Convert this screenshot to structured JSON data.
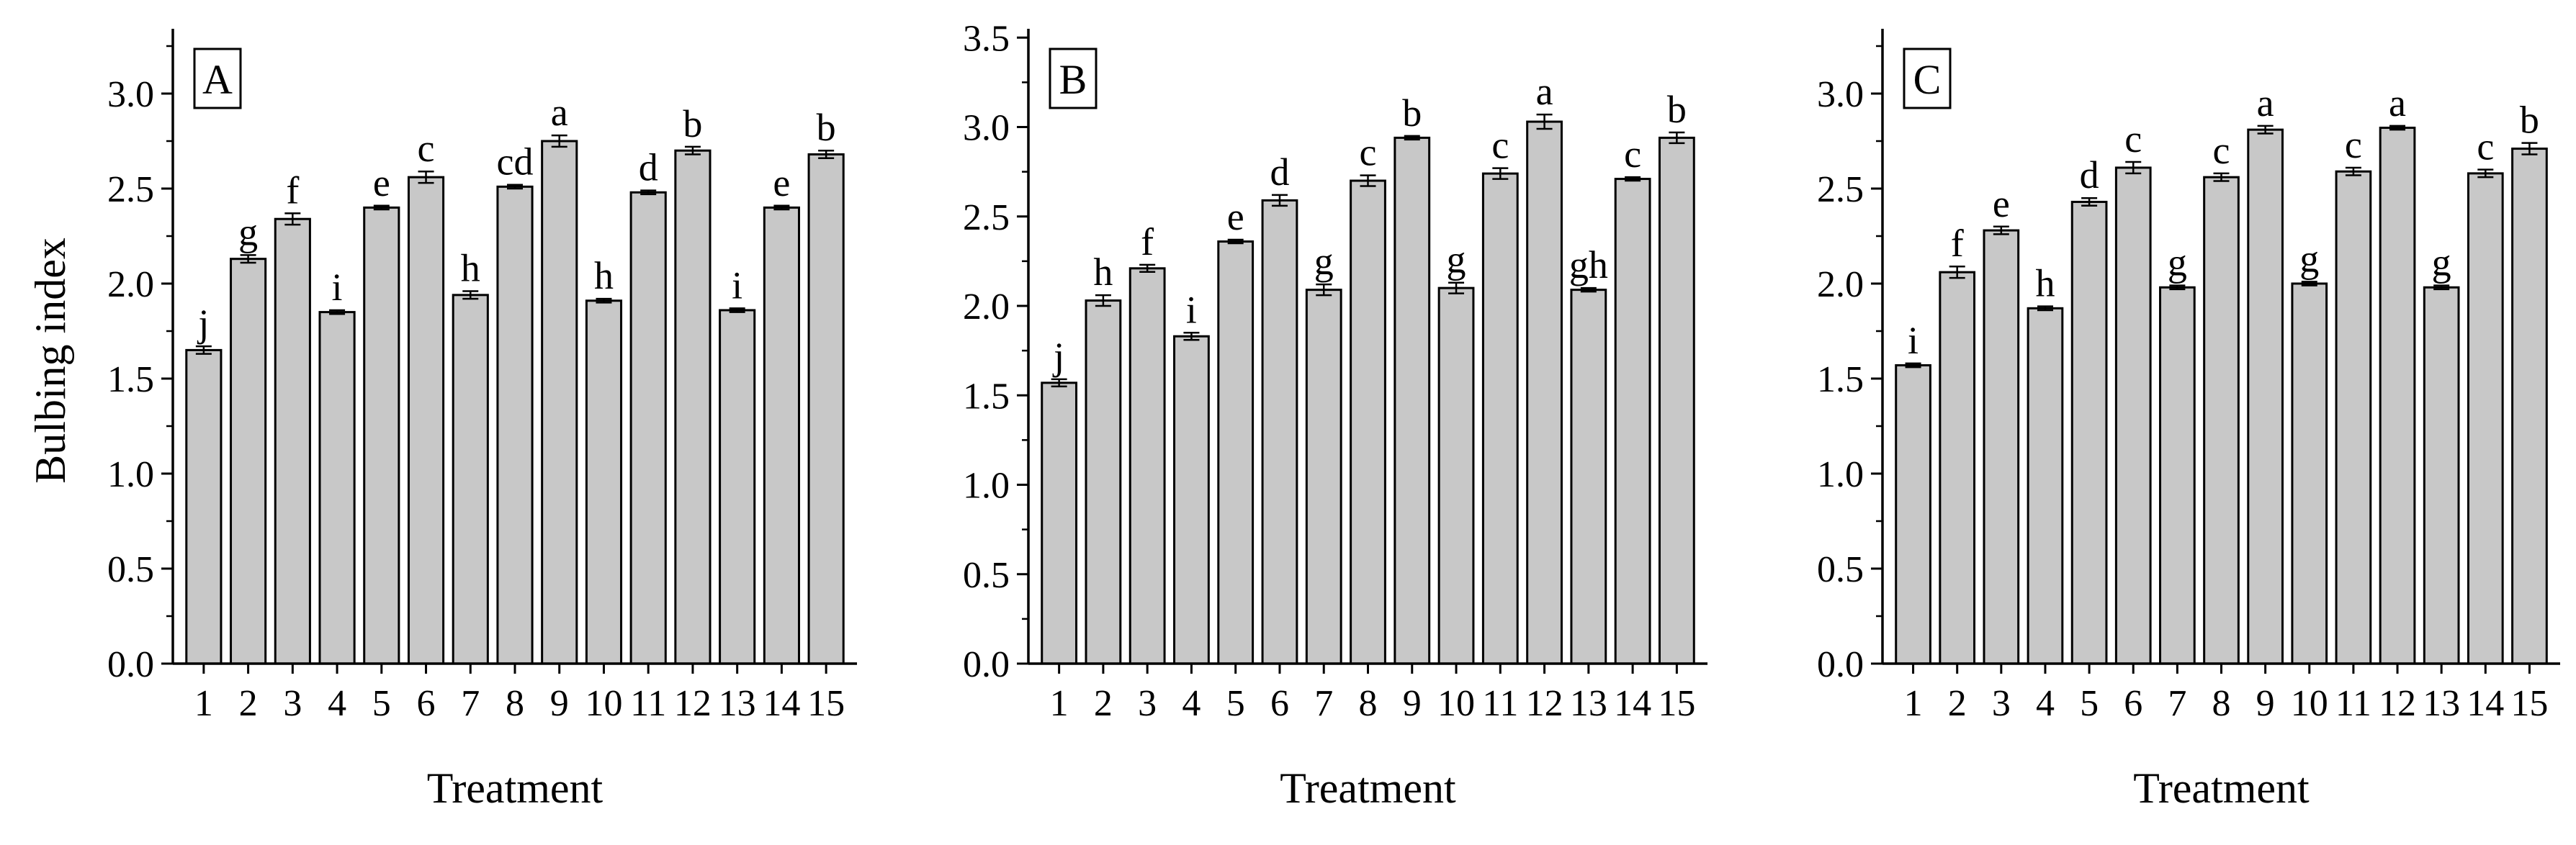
{
  "chart_data": [
    {
      "type": "bar",
      "panel_label": "A",
      "ylabel": "Bulbing index",
      "xlabel": "Treatment",
      "categories": [
        "1",
        "2",
        "3",
        "4",
        "5",
        "6",
        "7",
        "8",
        "9",
        "10",
        "11",
        "12",
        "13",
        "14",
        "15"
      ],
      "values": [
        1.65,
        2.13,
        2.34,
        1.85,
        2.4,
        2.56,
        1.94,
        2.51,
        2.75,
        1.91,
        2.48,
        2.7,
        1.86,
        2.4,
        2.68
      ],
      "errors": [
        0.02,
        0.02,
        0.03,
        0.01,
        0.01,
        0.03,
        0.02,
        0.01,
        0.03,
        0.01,
        0.01,
        0.02,
        0.01,
        0.01,
        0.02
      ],
      "letters": [
        "j",
        "g",
        "f",
        "i",
        "e",
        "c",
        "h",
        "cd",
        "a",
        "h",
        "d",
        "b",
        "i",
        "e",
        "b"
      ],
      "ylim": [
        0,
        3.3
      ],
      "yticks": [
        "0.0",
        "0.5",
        "1.0",
        "1.5",
        "2.0",
        "2.5",
        "3.0"
      ],
      "ytick_values": [
        0,
        0.5,
        1.0,
        1.5,
        2.0,
        2.5,
        3.0
      ],
      "bar_color": "#c8c8c8",
      "grid": false
    },
    {
      "type": "bar",
      "panel_label": "B",
      "ylabel": "",
      "xlabel": "Treatment",
      "categories": [
        "1",
        "2",
        "3",
        "4",
        "5",
        "6",
        "7",
        "8",
        "9",
        "10",
        "11",
        "12",
        "13",
        "14",
        "15"
      ],
      "values": [
        1.57,
        2.03,
        2.21,
        1.83,
        2.36,
        2.59,
        2.09,
        2.7,
        2.94,
        2.1,
        2.74,
        3.03,
        2.09,
        2.71,
        2.94
      ],
      "errors": [
        0.02,
        0.03,
        0.02,
        0.02,
        0.01,
        0.03,
        0.03,
        0.03,
        0.01,
        0.03,
        0.03,
        0.04,
        0.01,
        0.01,
        0.03
      ],
      "letters": [
        "j",
        "h",
        "f",
        "i",
        "e",
        "d",
        "g",
        "c",
        "b",
        "g",
        "c",
        "a",
        "gh",
        "c",
        "b"
      ],
      "ylim": [
        0,
        3.5
      ],
      "yticks": [
        "0.0",
        "0.5",
        "1.0",
        "1.5",
        "2.0",
        "2.5",
        "3.0",
        "3.5"
      ],
      "ytick_values": [
        0,
        0.5,
        1.0,
        1.5,
        2.0,
        2.5,
        3.0,
        3.5
      ],
      "bar_color": "#c8c8c8",
      "grid": false
    },
    {
      "type": "bar",
      "panel_label": "C",
      "ylabel": "",
      "xlabel": "Treatment",
      "categories": [
        "1",
        "2",
        "3",
        "4",
        "5",
        "6",
        "7",
        "8",
        "9",
        "10",
        "11",
        "12",
        "13",
        "14",
        "15"
      ],
      "values": [
        1.57,
        2.06,
        2.28,
        1.87,
        2.43,
        2.61,
        1.98,
        2.56,
        2.81,
        2.0,
        2.59,
        2.82,
        1.98,
        2.58,
        2.71
      ],
      "errors": [
        0.01,
        0.03,
        0.02,
        0.01,
        0.02,
        0.03,
        0.01,
        0.02,
        0.02,
        0.01,
        0.02,
        0.01,
        0.01,
        0.02,
        0.03
      ],
      "letters": [
        "i",
        "f",
        "e",
        "h",
        "d",
        "c",
        "g",
        "c",
        "a",
        "g",
        "c",
        "a",
        "g",
        "c",
        "b"
      ],
      "ylim": [
        0,
        3.3
      ],
      "yticks": [
        "0.0",
        "0.5",
        "1.0",
        "1.5",
        "2.0",
        "2.5",
        "3.0"
      ],
      "ytick_values": [
        0,
        0.5,
        1.0,
        1.5,
        2.0,
        2.5,
        3.0
      ],
      "bar_color": "#c8c8c8",
      "grid": false
    }
  ]
}
